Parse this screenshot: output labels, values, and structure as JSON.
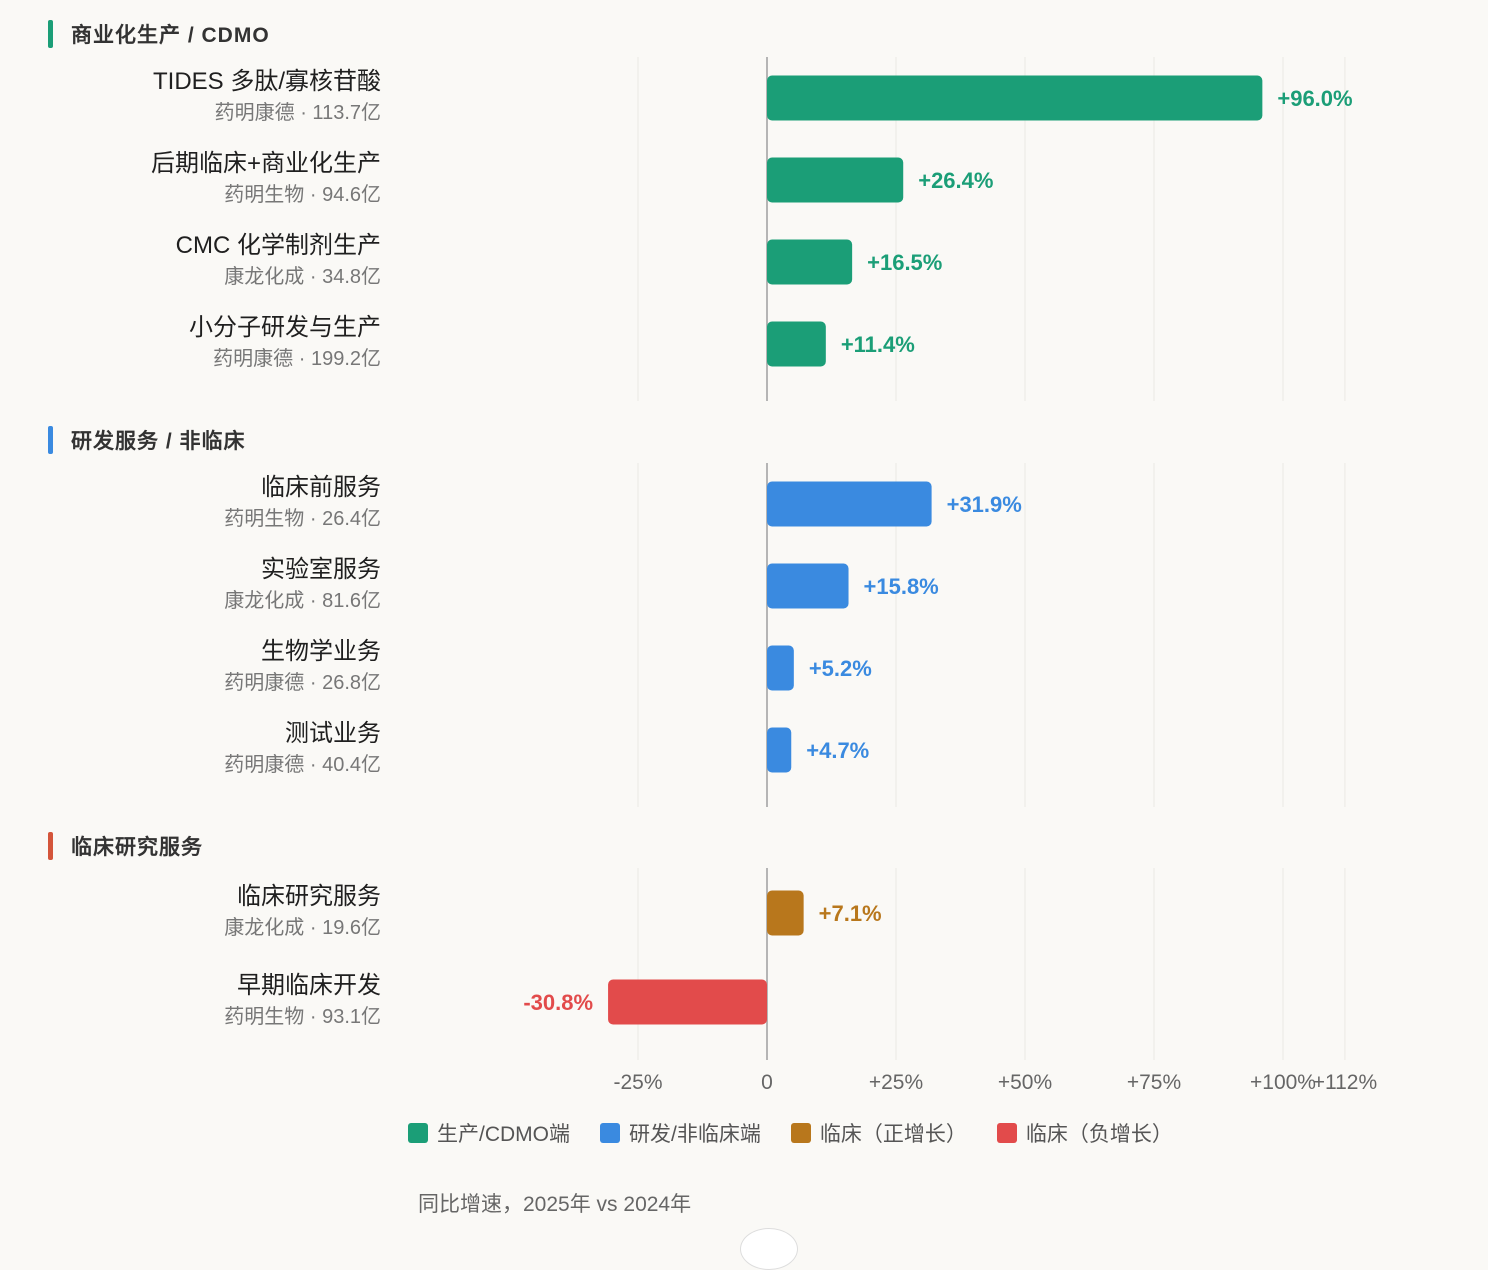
{
  "chart_data": {
    "type": "bar",
    "orientation": "horizontal",
    "xlim": [
      -31,
      112
    ],
    "ticks": [
      {
        "value": -25,
        "label": "-25%"
      },
      {
        "value": 0,
        "label": "0"
      },
      {
        "value": 25,
        "label": "+25%"
      },
      {
        "value": 50,
        "label": "+50%"
      },
      {
        "value": 75,
        "label": "+75%"
      },
      {
        "value": 100,
        "label": "+100%"
      },
      {
        "value": 112,
        "label": "+112%"
      }
    ],
    "grid": true,
    "groups": [
      {
        "title": "商业化生产 / CDMO",
        "accent": "#1b9e77",
        "rows": [
          {
            "name": "TIDES 多肽/寡核苷酸",
            "sub": "药明康德 · 113.7亿",
            "value": 96.0,
            "label": "+96.0%",
            "color": "#1b9e77"
          },
          {
            "name": "后期临床+商业化生产",
            "sub": "药明生物 · 94.6亿",
            "value": 26.4,
            "label": "+26.4%",
            "color": "#1b9e77"
          },
          {
            "name": "CMC 化学制剂生产",
            "sub": "康龙化成 · 34.8亿",
            "value": 16.5,
            "label": "+16.5%",
            "color": "#1b9e77"
          },
          {
            "name": "小分子研发与生产",
            "sub": "药明康德 · 199.2亿",
            "value": 11.4,
            "label": "+11.4%",
            "color": "#1b9e77"
          }
        ]
      },
      {
        "title": "研发服务 / 非临床",
        "accent": "#3a8ae0",
        "rows": [
          {
            "name": "临床前服务",
            "sub": "药明生物 · 26.4亿",
            "value": 31.9,
            "label": "+31.9%",
            "color": "#3a8ae0"
          },
          {
            "name": "实验室服务",
            "sub": "康龙化成 · 81.6亿",
            "value": 15.8,
            "label": "+15.8%",
            "color": "#3a8ae0"
          },
          {
            "name": "生物学业务",
            "sub": "药明康德 · 26.8亿",
            "value": 5.2,
            "label": "+5.2%",
            "color": "#3a8ae0"
          },
          {
            "name": "测试业务",
            "sub": "药明康德 · 40.4亿",
            "value": 4.7,
            "label": "+4.7%",
            "color": "#3a8ae0"
          }
        ]
      },
      {
        "title": "临床研究服务",
        "accent": "#d4553a",
        "rows": [
          {
            "name": "临床研究服务",
            "sub": "康龙化成 · 19.6亿",
            "value": 7.1,
            "label": "+7.1%",
            "color": "#b8771c"
          },
          {
            "name": "早期临床开发",
            "sub": "药明生物 · 93.1亿",
            "value": -30.8,
            "label": "-30.8%",
            "color": "#e24b4b"
          }
        ]
      }
    ],
    "legend": [
      {
        "label": "生产/CDMO端",
        "color": "#1b9e77"
      },
      {
        "label": "研发/非临床端",
        "color": "#3a8ae0"
      },
      {
        "label": "临床（正增长）",
        "color": "#b8771c"
      },
      {
        "label": "临床（负增长）",
        "color": "#e24b4b"
      }
    ],
    "legend_position": "bottom",
    "footnote": "同比增速，2025年 vs 2024年"
  }
}
